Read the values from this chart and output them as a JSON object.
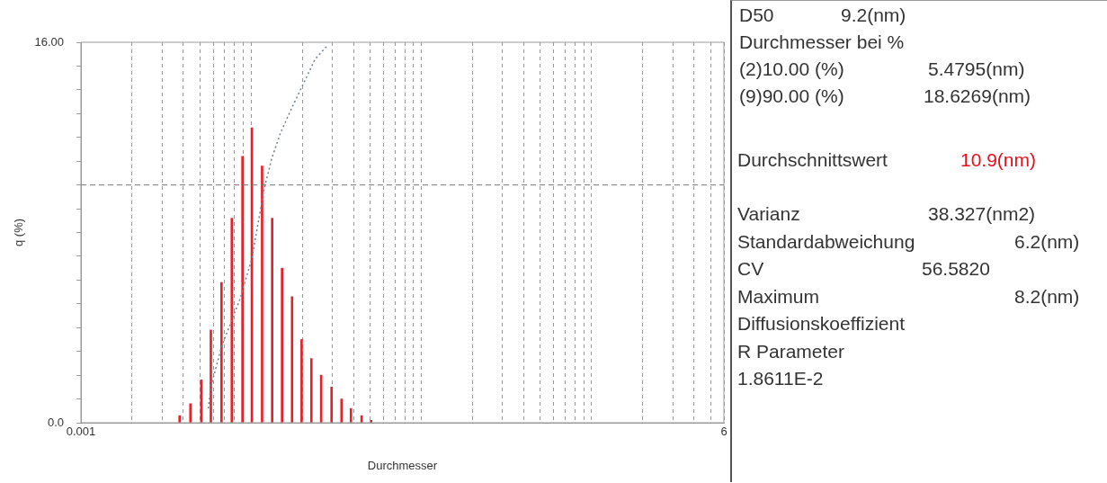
{
  "chart_data": {
    "type": "bar",
    "xlabel": "Durchmesser",
    "ylabel": "q (%)",
    "log": "x",
    "grid": "x",
    "legend": false,
    "x": [
      0.0038,
      0.0044,
      0.0051,
      0.0058,
      0.0067,
      0.0077,
      0.0089,
      0.0101,
      0.0116,
      0.0133,
      0.0152,
      0.0174,
      0.0198,
      0.0226,
      0.0258,
      0.0297,
      0.034,
      0.0386,
      0.0446,
      0.0507
    ],
    "series": [
      {
        "color": "#e8202a",
        "values": [
          0.3,
          0.8,
          1.8,
          3.9,
          5.9,
          8.6,
          11.2,
          12.4,
          10.8,
          8.6,
          6.5,
          5.3,
          3.5,
          2.7,
          2.0,
          1.5,
          1.0,
          0.6,
          0.3,
          0.1
        ]
      },
      {
        "type": "line",
        "color": "#6f8090",
        "line_style": "dotted",
        "marker": "none",
        "x": [
          0.0056,
          0.0058,
          0.0067,
          0.0086,
          0.0101,
          0.0119,
          0.0132,
          0.0149,
          0.0175,
          0.0238,
          0.0284
        ],
        "values": [
          0.6,
          1.5,
          3.2,
          5.2,
          6.9,
          9.8,
          11.1,
          12.2,
          13.3,
          15.3,
          15.9
        ]
      }
    ],
    "xlim": [
      0.001,
      6
    ],
    "xticks": [
      {
        "value": 0.001,
        "label": "0.001"
      },
      {
        "value": 0.002,
        "label": null
      },
      {
        "value": 0.003,
        "label": null
      },
      {
        "value": 0.004,
        "label": null
      },
      {
        "value": 0.005,
        "label": null
      },
      {
        "value": 0.006,
        "label": null
      },
      {
        "value": 0.007,
        "label": null
      },
      {
        "value": 0.008,
        "label": null
      },
      {
        "value": 0.009,
        "label": null
      },
      {
        "value": 0.01,
        "label": null
      },
      {
        "value": 0.02,
        "label": null
      },
      {
        "value": 0.03,
        "label": null
      },
      {
        "value": 0.04,
        "label": null
      },
      {
        "value": 0.05,
        "label": null
      },
      {
        "value": 0.06,
        "label": null
      },
      {
        "value": 0.07,
        "label": null
      },
      {
        "value": 0.08,
        "label": null
      },
      {
        "value": 0.09,
        "label": null
      },
      {
        "value": 0.1,
        "label": null
      },
      {
        "value": 0.2,
        "label": null
      },
      {
        "value": 0.3,
        "label": null
      },
      {
        "value": 0.4,
        "label": null
      },
      {
        "value": 0.5,
        "label": null
      },
      {
        "value": 0.6,
        "label": null
      },
      {
        "value": 0.7,
        "label": null
      },
      {
        "value": 0.8,
        "label": null
      },
      {
        "value": 0.9,
        "label": null
      },
      {
        "value": 1,
        "label": null
      },
      {
        "value": 2,
        "label": null
      },
      {
        "value": 3,
        "label": null
      },
      {
        "value": 4,
        "label": null
      },
      {
        "value": 5,
        "label": null
      },
      {
        "value": 6,
        "label": "6"
      }
    ],
    "ylim": [
      0,
      16
    ],
    "yticks": [
      {
        "value": 0,
        "label": "0.0"
      },
      {
        "value": 1,
        "label": null
      },
      {
        "value": 2,
        "label": null
      },
      {
        "value": 3,
        "label": null
      },
      {
        "value": 4,
        "label": null
      },
      {
        "value": 5,
        "label": null
      },
      {
        "value": 6,
        "label": null
      },
      {
        "value": 7,
        "label": null
      },
      {
        "value": 8,
        "label": null
      },
      {
        "value": 9,
        "label": null
      },
      {
        "value": 10,
        "label": null
      },
      {
        "value": 11,
        "label": null
      },
      {
        "value": 12,
        "label": null
      },
      {
        "value": 13,
        "label": null
      },
      {
        "value": 14,
        "label": null
      },
      {
        "value": 15,
        "label": null
      },
      {
        "value": 16,
        "label": "16.00"
      }
    ],
    "ref_lines": [
      {
        "axis": "y",
        "value": 10,
        "line_style": "dashed",
        "color": "#777777"
      }
    ],
    "annotations": [
      "D50",
      "9.2(nm)",
      "Durchmesser bei %",
      "(2)10.00 (%)",
      "5.4795(nm)",
      "(9)90.00 (%)",
      "18.6269(nm)",
      "Durchschnittswert",
      "10.9(nm)",
      "Varianz",
      "38.327(nm2)",
      "Standardabweichung",
      "6.2(nm)",
      "CV",
      "56.5820",
      "Maximum",
      "8.2(nm)",
      "Diffusionskoeffizient",
      "R Parameter",
      "1.8611E-2"
    ]
  }
}
